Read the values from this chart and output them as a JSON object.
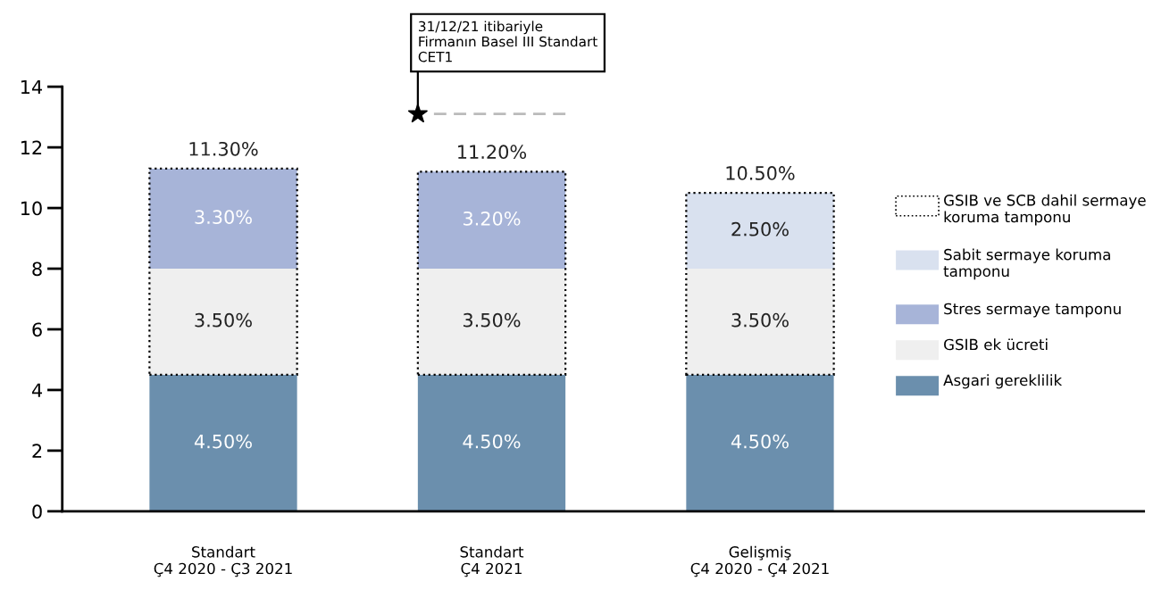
{
  "chart_data": {
    "type": "bar",
    "stacked": true,
    "categories": [
      "Standart\nÇ4 2020 - Ç3 2021",
      "Standart\nÇ4 2021",
      "Gelişmiş\nÇ4 2020 - Ç4 2021"
    ],
    "series": [
      {
        "name": "Asgari gereklilik",
        "color": "#6b8fad",
        "values": [
          4.5,
          4.5,
          4.5
        ],
        "value_labels": [
          "4.50%",
          "4.50%",
          "4.50%"
        ]
      },
      {
        "name": "GSIB ek ücreti",
        "color": "#efefef",
        "values": [
          3.5,
          3.5,
          3.5
        ],
        "value_labels": [
          "3.50%",
          "3.50%",
          "3.50%"
        ]
      },
      {
        "name": "Stres sermaye tamponu",
        "color": "#a7b4d8",
        "values": [
          3.3,
          3.2,
          null
        ],
        "value_labels": [
          "3.30%",
          "3.20%",
          null
        ]
      },
      {
        "name": "Sabit sermaye koruma tamponu",
        "color": "#d9e1ef",
        "values": [
          null,
          null,
          2.5
        ],
        "value_labels": [
          null,
          null,
          "2.50%"
        ]
      }
    ],
    "totals": [
      "11.30%",
      "11.20%",
      "10.50%"
    ],
    "annotations": [
      "31/12/21 itibariyle\nFirmanın Basel III Standart\nCET1",
      "GSIB ve SCB dahil sermaye koruma tamponu"
    ],
    "ref_lines": [
      {
        "axis": "y",
        "value": 13.1,
        "color": "#bbbbbb",
        "line_style": "dashed"
      }
    ],
    "ylim": [
      0,
      14
    ],
    "yticks": [
      0,
      2,
      4,
      6,
      8,
      10,
      12,
      14
    ],
    "grid": false,
    "legend": "right"
  }
}
